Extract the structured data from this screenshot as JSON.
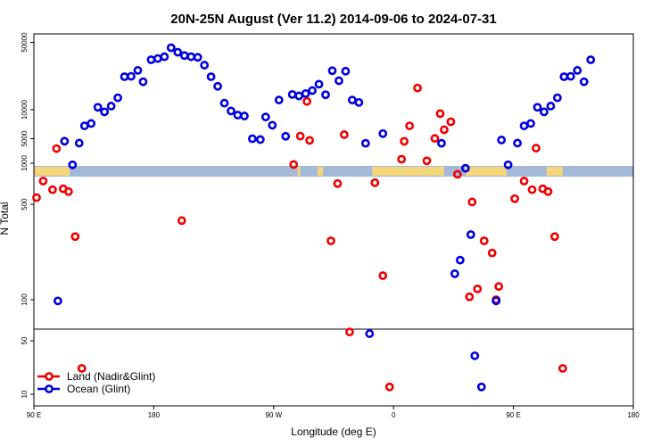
{
  "chart_data": {
    "type": "scatter",
    "title": "20N-25N August (Ver 11.2)   2014-09-06 to 2024-07-31",
    "xlabel": "Longitude (deg E)",
    "ylabel": "N Total",
    "x_ticks": [
      {
        "value": 90,
        "label": "90 E"
      },
      {
        "value": 180,
        "label": "180"
      },
      {
        "value": 270,
        "label": "90 W"
      },
      {
        "value": 360,
        "label": "0"
      },
      {
        "value": 450,
        "label": "90 E"
      },
      {
        "value": 540,
        "label": "180"
      }
    ],
    "xlim": [
      90,
      540
    ],
    "y_top_ticks": [
      {
        "value": 50000,
        "label": "50000"
      },
      {
        "value": 10000,
        "label": "10000"
      },
      {
        "value": 5000,
        "label": "5000"
      }
    ],
    "y_mid_ticks": [
      {
        "value": 1000,
        "label": "1000"
      },
      {
        "value": 500,
        "label": "500"
      },
      {
        "value": 100,
        "label": "100"
      }
    ],
    "y_low_ticks": [
      {
        "value": 50,
        "label": "50"
      },
      {
        "value": 10,
        "label": "10"
      }
    ],
    "legend": [
      {
        "name": "Land (Nadir&Glint)",
        "color": "#ee0000"
      },
      {
        "name": "Ocean (Glint)",
        "color": "#0000dd"
      }
    ],
    "map_colors": {
      "ocean": "#a4b8d8",
      "land": "#f5d67a"
    },
    "series": [
      {
        "name": "Land (Nadir&Glint)",
        "color": "#ee0000",
        "points": [
          [
            92,
            560
          ],
          [
            97,
            740
          ],
          [
            104,
            640
          ],
          [
            107,
            1280
          ],
          [
            112,
            650
          ],
          [
            116,
            620
          ],
          [
            121,
            290
          ],
          [
            126,
            19
          ],
          [
            201,
            380
          ],
          [
            285,
            2700
          ],
          [
            290,
            1580
          ],
          [
            295,
            12200
          ],
          [
            297,
            4800
          ],
          [
            313,
            270
          ],
          [
            318,
            710
          ],
          [
            323,
            1620
          ],
          [
            327,
            58
          ],
          [
            346,
            720
          ],
          [
            352,
            150
          ],
          [
            357,
            12
          ],
          [
            366,
            1070
          ],
          [
            368,
            4700
          ],
          [
            372,
            6800
          ],
          [
            378,
            16800
          ],
          [
            385,
            2950
          ],
          [
            391,
            1520
          ],
          [
            395,
            9100
          ],
          [
            398,
            6200
          ],
          [
            403,
            7500
          ],
          [
            408,
            830
          ],
          [
            417,
            105
          ],
          [
            419,
            520
          ],
          [
            423,
            120
          ],
          [
            428,
            270
          ],
          [
            434,
            220
          ],
          [
            437,
            100
          ],
          [
            439,
            125
          ],
          [
            451,
            550
          ],
          [
            458,
            740
          ],
          [
            464,
            640
          ],
          [
            467,
            1290
          ],
          [
            472,
            650
          ],
          [
            476,
            620
          ],
          [
            481,
            290
          ],
          [
            487,
            19
          ]
        ]
      },
      {
        "name": "Ocean (Glint)",
        "color": "#0000dd",
        "points": [
          [
            108,
            98
          ],
          [
            113,
            1450
          ],
          [
            119,
            2680
          ],
          [
            124,
            4500
          ],
          [
            128,
            6800
          ],
          [
            133,
            7200
          ],
          [
            138,
            10600
          ],
          [
            143,
            9500
          ],
          [
            148,
            10900
          ],
          [
            153,
            13300
          ],
          [
            158,
            22000
          ],
          [
            163,
            22200
          ],
          [
            168,
            25600
          ],
          [
            172,
            19500
          ],
          [
            178,
            33000
          ],
          [
            183,
            34000
          ],
          [
            188,
            35500
          ],
          [
            193,
            44000
          ],
          [
            198,
            39500
          ],
          [
            203,
            36500
          ],
          [
            208,
            35500
          ],
          [
            213,
            35000
          ],
          [
            218,
            29000
          ],
          [
            223,
            22000
          ],
          [
            228,
            17500
          ],
          [
            233,
            11700
          ],
          [
            238,
            9700
          ],
          [
            243,
            8800
          ],
          [
            248,
            8600
          ],
          [
            254,
            5000
          ],
          [
            260,
            4900
          ],
          [
            264,
            8400
          ],
          [
            269,
            6900
          ],
          [
            274,
            12600
          ],
          [
            279,
            5300
          ],
          [
            284,
            14400
          ],
          [
            289,
            13900
          ],
          [
            294,
            14700
          ],
          [
            299,
            15800
          ],
          [
            304,
            18400
          ],
          [
            309,
            14300
          ],
          [
            314,
            25400
          ],
          [
            319,
            20000
          ],
          [
            324,
            25100
          ],
          [
            329,
            12600
          ],
          [
            334,
            11900
          ],
          [
            339,
            1400
          ],
          [
            342,
            45
          ],
          [
            352,
            1650
          ],
          [
            396,
            1400
          ],
          [
            406,
            155
          ],
          [
            410,
            195
          ],
          [
            414,
            918
          ],
          [
            418,
            300
          ],
          [
            421,
            26
          ],
          [
            426,
            12
          ],
          [
            437,
            98
          ],
          [
            441,
            1480
          ],
          [
            446,
            2680
          ],
          [
            453,
            4500
          ],
          [
            458,
            6800
          ],
          [
            463,
            7200
          ],
          [
            468,
            10600
          ],
          [
            473,
            9500
          ],
          [
            478,
            10900
          ],
          [
            483,
            13300
          ],
          [
            488,
            22000
          ],
          [
            493,
            22200
          ],
          [
            498,
            25600
          ],
          [
            503,
            19500
          ],
          [
            508,
            33000
          ]
        ]
      }
    ]
  }
}
